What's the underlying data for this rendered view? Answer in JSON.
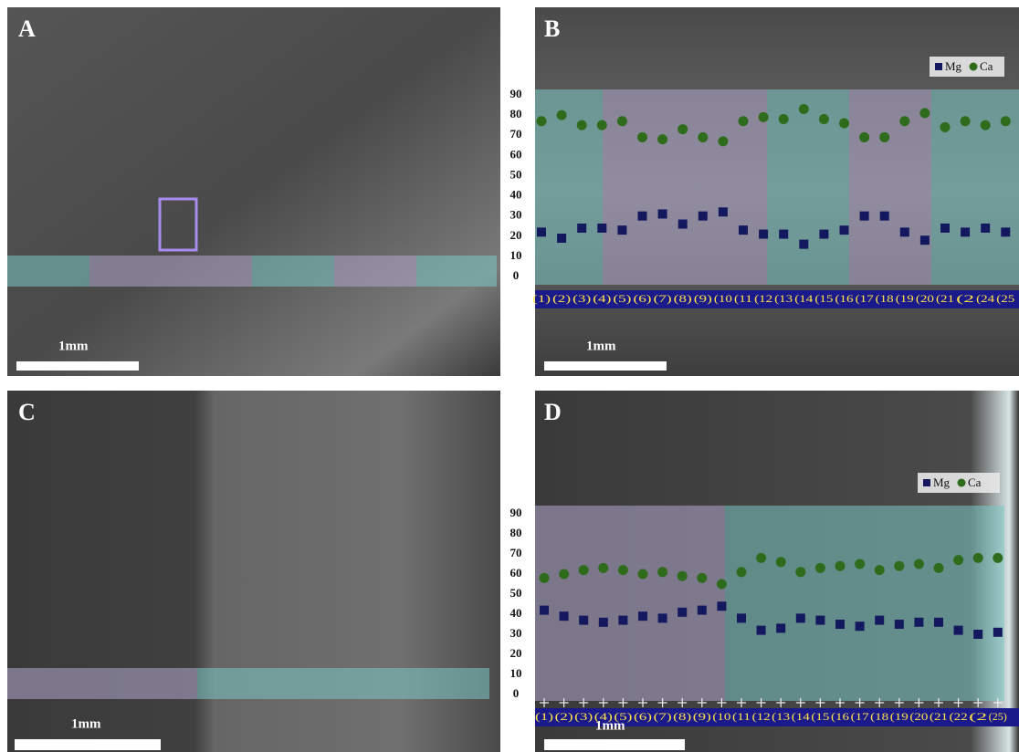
{
  "panels": {
    "labels": [
      "A",
      "B",
      "C",
      "D"
    ],
    "scale_bars": [
      "1mm",
      "1mm",
      "1mm",
      "1mm"
    ]
  },
  "chart_data": [
    {
      "type": "scatter",
      "categories": [
        "(1)",
        "(2)",
        "(3)",
        "(4)",
        "(5)",
        "(6)",
        "(7)",
        "(8)",
        "(9)",
        "(10",
        "(11",
        "(12",
        "(13",
        "(14",
        "(15",
        "(16",
        "(17",
        "(18",
        "(19",
        "(20",
        "(21",
        "(2",
        "(24",
        "(25"
      ],
      "series": [
        {
          "name": "Mg",
          "color": "#14185e",
          "marker": "square",
          "values": [
            22,
            19,
            24,
            24,
            23,
            30,
            31,
            26,
            30,
            32,
            23,
            21,
            21,
            16,
            21,
            23,
            30,
            30,
            22,
            18,
            24,
            22,
            24,
            22
          ]
        },
        {
          "name": "Ca",
          "color": "#2e6b1a",
          "marker": "circle",
          "values": [
            77,
            80,
            75,
            75,
            77,
            69,
            68,
            73,
            69,
            67,
            77,
            79,
            78,
            83,
            78,
            76,
            69,
            69,
            77,
            81,
            74,
            77,
            75,
            77
          ]
        }
      ],
      "ylim": [
        0,
        90
      ],
      "yticks": [
        0,
        10,
        20,
        30,
        40,
        50,
        60,
        70,
        80,
        90
      ]
    },
    {
      "type": "scatter",
      "categories": [
        "(1)",
        "(2)",
        "(3)",
        "(4)",
        "(5)",
        "(6)",
        "(7)",
        "(8)",
        "(9)",
        "(10",
        "(11",
        "(12",
        "(13",
        "(14",
        "(15",
        "(16",
        "(17",
        "(18",
        "(19",
        "(20",
        "(21",
        "(22",
        "(2",
        "(25)"
      ],
      "series": [
        {
          "name": "Mg",
          "color": "#14185e",
          "marker": "square",
          "values": [
            42,
            39,
            37,
            36,
            37,
            39,
            38,
            41,
            42,
            44,
            38,
            32,
            33,
            38,
            37,
            35,
            34,
            37,
            35,
            36,
            36,
            32,
            30,
            31
          ]
        },
        {
          "name": "Ca",
          "color": "#2e6b1a",
          "marker": "circle",
          "values": [
            58,
            60,
            62,
            63,
            62,
            60,
            61,
            59,
            58,
            55,
            61,
            68,
            66,
            61,
            63,
            64,
            65,
            62,
            64,
            65,
            63,
            67,
            68,
            68
          ]
        }
      ],
      "ylim": [
        0,
        90
      ],
      "yticks": [
        0,
        10,
        20,
        30,
        40,
        50,
        60,
        70,
        80,
        90
      ]
    }
  ]
}
